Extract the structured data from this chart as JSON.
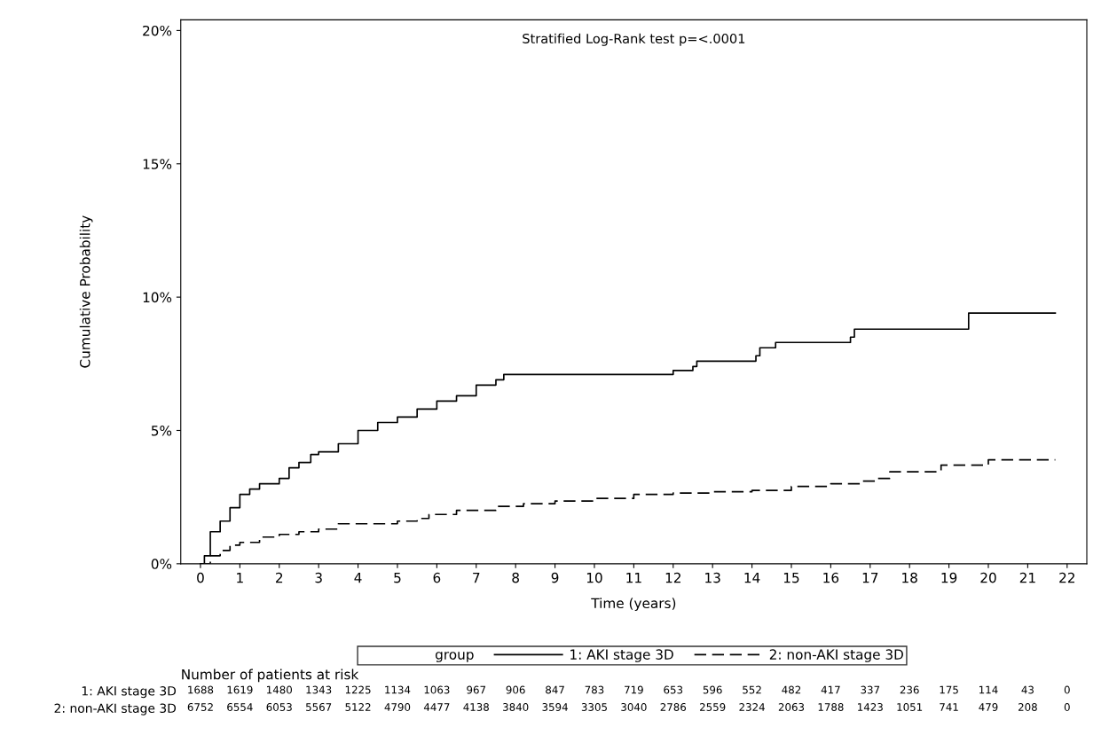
{
  "chart_data": [
    {
      "type": "step",
      "xlabel": "Time (years)",
      "ylabel": "Cumulative Probability",
      "legend_title": "group",
      "legend": "bottom",
      "annotations": [
        "Stratified Log-Rank test p=<.0001"
      ],
      "xlim": [
        -0.5,
        22.5
      ],
      "xticks": [
        0,
        1,
        2,
        3,
        4,
        5,
        6,
        7,
        8,
        9,
        10,
        11,
        12,
        13,
        14,
        15,
        16,
        17,
        18,
        19,
        20,
        21,
        22
      ],
      "ylim": [
        0,
        20.4
      ],
      "yticks": [
        {
          "value": 0,
          "label": "0%"
        },
        {
          "value": 5,
          "label": "5%"
        },
        {
          "value": 10,
          "label": "10%"
        },
        {
          "value": 15,
          "label": "15%"
        },
        {
          "value": 20,
          "label": "20%"
        }
      ],
      "grid": false,
      "series": [
        {
          "name": "1: AKI stage 3D",
          "color": "#000000",
          "line_style": "solid",
          "x": [
            0,
            0.1,
            0.25,
            0.5,
            0.75,
            1.0,
            1.25,
            1.5,
            2.0,
            2.25,
            2.5,
            2.8,
            3.0,
            3.5,
            4.0,
            4.5,
            5.0,
            5.5,
            6.0,
            6.5,
            7.0,
            7.5,
            7.7,
            12.0,
            12.5,
            12.6,
            14.1,
            14.2,
            14.6,
            16.5,
            16.6,
            19.5,
            21.7
          ],
          "values": [
            0,
            0.3,
            1.2,
            1.6,
            2.1,
            2.6,
            2.8,
            3.0,
            3.2,
            3.6,
            3.8,
            4.1,
            4.2,
            4.5,
            5.0,
            5.3,
            5.5,
            5.8,
            6.1,
            6.3,
            6.7,
            6.9,
            7.1,
            7.25,
            7.4,
            7.6,
            7.8,
            8.1,
            8.3,
            8.5,
            8.8,
            9.4,
            9.4
          ]
        },
        {
          "name": "2: non-AKI stage 3D",
          "color": "#000000",
          "line_style": "dashed",
          "x": [
            0,
            0.25,
            0.5,
            0.75,
            1.0,
            1.5,
            2.0,
            2.5,
            3.0,
            3.5,
            5.0,
            5.5,
            5.8,
            6.5,
            7.5,
            8.2,
            9.0,
            10.0,
            11.0,
            12.0,
            13.0,
            14.0,
            15.0,
            16.0,
            16.8,
            17.2,
            17.5,
            18.8,
            20.0,
            21.7
          ],
          "values": [
            0,
            0.3,
            0.5,
            0.7,
            0.8,
            1.0,
            1.1,
            1.2,
            1.3,
            1.5,
            1.6,
            1.7,
            1.85,
            2.0,
            2.15,
            2.25,
            2.35,
            2.45,
            2.6,
            2.65,
            2.7,
            2.75,
            2.9,
            3.0,
            3.1,
            3.2,
            3.45,
            3.7,
            3.9,
            3.9
          ]
        }
      ]
    },
    {
      "type": "other",
      "title": "Number of patients at risk",
      "categories": [
        "1: AKI stage 3D",
        "2: non-AKI stage 3D"
      ],
      "annotations": [
        "1688",
        "1619",
        "1480",
        "1343",
        "1225",
        "1134",
        "1063",
        "967",
        "906",
        "847",
        "783",
        "719",
        "653",
        "596",
        "552",
        "482",
        "417",
        "337",
        "236",
        "175",
        "114",
        "43",
        "0",
        "6752",
        "6554",
        "6053",
        "5567",
        "5122",
        "4790",
        "4477",
        "4138",
        "3840",
        "3594",
        "3305",
        "3040",
        "2786",
        "2559",
        "2324",
        "2063",
        "1788",
        "1423",
        "1051",
        "741",
        "479",
        "208",
        "0"
      ]
    }
  ]
}
